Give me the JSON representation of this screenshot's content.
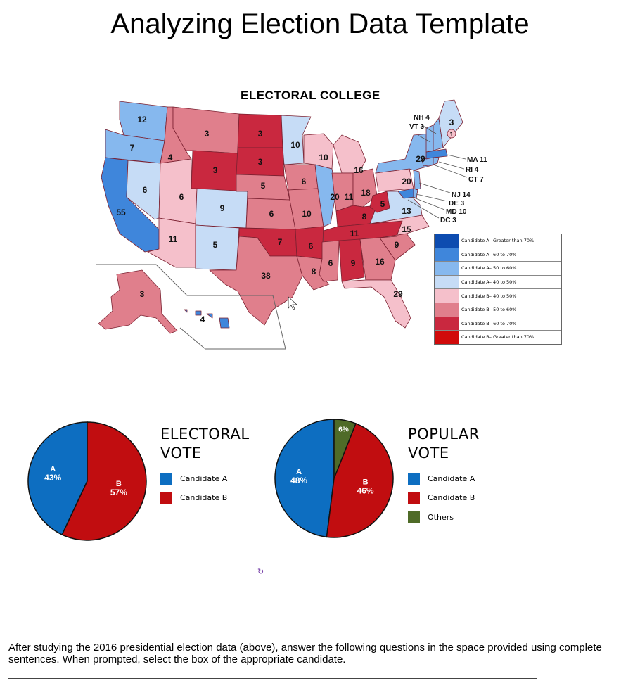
{
  "page": {
    "title": "Analyzing Election Data Template",
    "instructions": "After studying the 2016 presidential election data (above), answer the following questions in the space provided using complete sentences. When prompted, select the box of the appropriate candidate.",
    "refresh_icon": "refresh-icon"
  },
  "colors": {
    "a_gt70": "#0d4cb0",
    "a_60_70": "#3f86db",
    "a_50_60": "#86b8ee",
    "a_40_50": "#c6dcf6",
    "b_40_50": "#f5c0cb",
    "b_50_60": "#e07f8c",
    "b_60_70": "#c9283f",
    "b_gt70": "#d10a0a",
    "pie_a": "#0d6ec1",
    "pie_b": "#c10d10",
    "pie_others": "#4f6b28"
  },
  "map": {
    "title": "ELECTORAL COLLEGE",
    "state_votes": {
      "WA": "12",
      "OR": "7",
      "CA": "55",
      "NV": "6",
      "ID": "4",
      "MT": "3",
      "WY": "3",
      "UT": "6",
      "AZ": "11",
      "CO": "9",
      "NM": "5",
      "ND": "3",
      "SD": "3",
      "NE": "5",
      "KS": "6",
      "OK": "7",
      "TX": "38",
      "MN": "10",
      "IA": "6",
      "MO": "10",
      "AR": "6",
      "LA": "8",
      "WI": "10",
      "IL": "20",
      "MI": "16",
      "IN": "11",
      "OH": "18",
      "KY": "8",
      "TN": "11",
      "MS": "6",
      "AL": "9",
      "GA": "16",
      "FL": "29",
      "SC": "9",
      "NC": "15",
      "VA": "13",
      "WV": "5",
      "PA": "20",
      "NY": "29",
      "ME": "3",
      "ME_district": "1",
      "AK": "3",
      "HI": "4"
    },
    "callouts": [
      "NH 4",
      "VT 3",
      "MA 11",
      "RI 4",
      "CT 7",
      "NJ 14",
      "DE 3",
      "MD 10",
      "DC 3"
    ],
    "legend": [
      {
        "label": "Candidate A– Greater than 70%",
        "color_key": "a_gt70"
      },
      {
        "label": "Candidate A– 60 to 70%",
        "color_key": "a_60_70"
      },
      {
        "label": "Candidate A– 50 to 60%",
        "color_key": "a_50_60"
      },
      {
        "label": "Candidate A– 40 to 50%",
        "color_key": "a_40_50"
      },
      {
        "label": "Candidate B– 40 to 50%",
        "color_key": "b_40_50"
      },
      {
        "label": "Candidate B– 50 to 60%",
        "color_key": "b_50_60"
      },
      {
        "label": "Candidate B– 60 to 70%",
        "color_key": "b_60_70"
      },
      {
        "label": "Candidate B– Greater than 70%",
        "color_key": "b_gt70"
      }
    ]
  },
  "chart_data": [
    {
      "type": "pie",
      "title": "ELECTORAL VOTE",
      "title_line1": "ELECTORAL",
      "title_line2": "VOTE",
      "categories": [
        "Candidate A",
        "Candidate B"
      ],
      "values": [
        43,
        57
      ],
      "slice_letters": [
        "A",
        "B"
      ],
      "slice_labels": [
        "43%",
        "57%"
      ],
      "legend": [
        "Candidate A",
        "Candidate B"
      ]
    },
    {
      "type": "pie",
      "title": "POPULAR VOTE",
      "title_line1": "POPULAR",
      "title_line2": "VOTE",
      "categories": [
        "Candidate A",
        "Candidate B",
        "Others"
      ],
      "values": [
        48,
        46,
        6
      ],
      "slice_letters": [
        "A",
        "B",
        ""
      ],
      "slice_labels": [
        "48%",
        "46%",
        "6%"
      ],
      "legend": [
        "Candidate A",
        "Candidate B",
        "Others"
      ]
    }
  ]
}
